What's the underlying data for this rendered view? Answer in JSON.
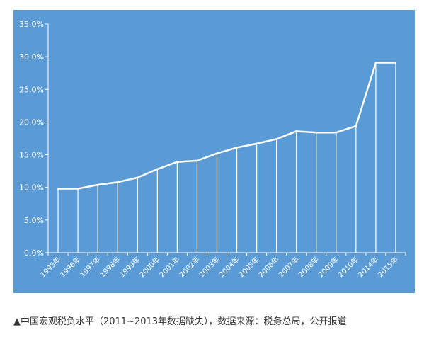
{
  "colors": {
    "background": "#5b9bd5",
    "line": "#ffffff",
    "text": "#ffffff"
  },
  "chart_data": {
    "type": "line",
    "title": "",
    "xlabel": "",
    "ylabel": "",
    "categories": [
      "1995年",
      "1996年",
      "1997年",
      "1998年",
      "1999年",
      "2000年",
      "2001年",
      "2002年",
      "2003年",
      "2004年",
      "2005年",
      "2006年",
      "2007年",
      "2008年",
      "2009年",
      "2010年",
      "2014年",
      "2015年"
    ],
    "series": [
      {
        "values": [
          9.8,
          9.8,
          10.4,
          10.8,
          11.5,
          12.8,
          13.9,
          14.1,
          15.2,
          16.1,
          16.7,
          17.4,
          18.6,
          18.4,
          18.4,
          19.4,
          29.1,
          29.1
        ]
      }
    ],
    "ylim": [
      0,
      35
    ],
    "yticks": [
      "0.0%",
      "5.0%",
      "10.0%",
      "15.0%",
      "20.0%",
      "25.0%",
      "30.0%",
      "35.0%"
    ],
    "grid": false,
    "legend": "none"
  },
  "caption": "▲中国宏观税负水平（2011~2013年数据缺失），数据来源：税务总局，公开报道"
}
